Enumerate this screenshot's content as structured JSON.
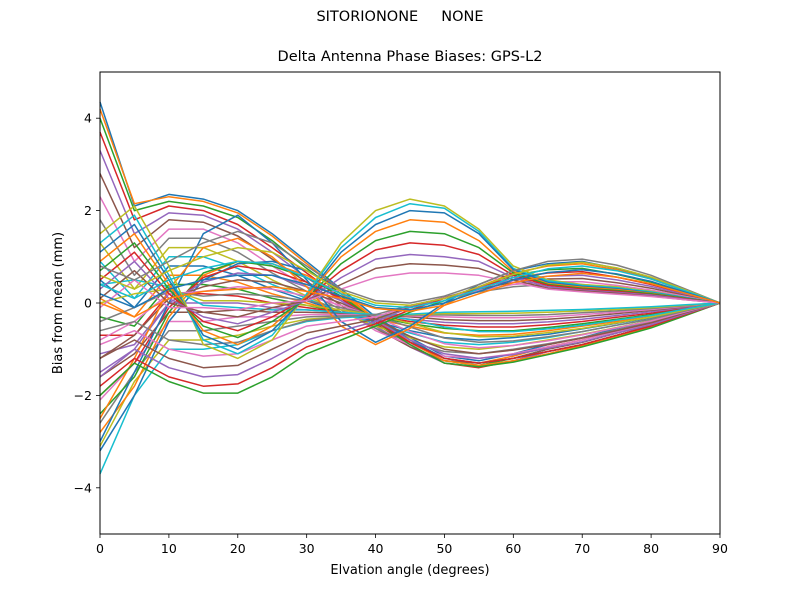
{
  "figure": {
    "suptitle": "SITORIONONE     NONE"
  },
  "chart_data": {
    "type": "line",
    "title": "Delta Antenna Phase Biases: GPS-L2",
    "xlabel": "Elvation angle (degrees)",
    "ylabel": "Bias from mean (mm)",
    "xlim": [
      0,
      90
    ],
    "ylim": [
      -5,
      5
    ],
    "xticks": [
      0,
      10,
      20,
      30,
      40,
      50,
      60,
      70,
      80,
      90
    ],
    "yticks": [
      -4,
      -2,
      0,
      2,
      4
    ],
    "ytick_labels": [
      "−4",
      "−2",
      "0",
      "2",
      "4"
    ],
    "grid": false,
    "legend": "none",
    "x": [
      0,
      5,
      10,
      15,
      20,
      25,
      30,
      35,
      40,
      45,
      50,
      55,
      60,
      65,
      70,
      75,
      80,
      85,
      90
    ],
    "colors": [
      "#1f77b4",
      "#ff7f0e",
      "#2ca02c",
      "#d62728",
      "#9467bd",
      "#8c564b",
      "#e377c2",
      "#7f7f7f",
      "#bcbd22",
      "#17becf"
    ],
    "series": [
      {
        "values": [
          4.35,
          2.1,
          2.35,
          2.25,
          2.0,
          1.5,
          0.9,
          0.3,
          -0.3,
          -0.75,
          -1.15,
          -1.25,
          -1.1,
          -0.9,
          -0.75,
          -0.55,
          -0.4,
          -0.2,
          0
        ]
      },
      {
        "values": [
          4.2,
          2.15,
          2.3,
          2.2,
          1.95,
          1.45,
          0.85,
          0.25,
          -0.35,
          -0.8,
          -1.2,
          -1.3,
          -1.15,
          -0.95,
          -0.8,
          -0.6,
          -0.42,
          -0.2,
          0
        ]
      },
      {
        "values": [
          4.0,
          2.0,
          2.2,
          2.1,
          1.85,
          1.35,
          0.75,
          0.2,
          -0.4,
          -0.85,
          -1.25,
          -1.35,
          -1.2,
          -1.0,
          -0.85,
          -0.65,
          -0.45,
          -0.22,
          0
        ]
      },
      {
        "values": [
          3.7,
          1.8,
          2.1,
          2.0,
          1.7,
          1.2,
          0.65,
          0.1,
          -0.45,
          -0.9,
          -1.3,
          -1.4,
          -1.25,
          -1.05,
          -0.9,
          -0.7,
          -0.5,
          -0.25,
          0
        ]
      },
      {
        "values": [
          3.3,
          1.5,
          1.95,
          1.9,
          1.6,
          1.1,
          0.55,
          0.05,
          -0.5,
          -0.95,
          -1.3,
          -1.38,
          -1.25,
          -1.05,
          -0.9,
          -0.7,
          -0.5,
          -0.25,
          0
        ]
      },
      {
        "values": [
          2.8,
          1.2,
          1.8,
          1.75,
          1.45,
          0.95,
          0.45,
          -0.05,
          -0.55,
          -0.95,
          -1.25,
          -1.3,
          -1.2,
          -1.0,
          -0.85,
          -0.65,
          -0.48,
          -0.24,
          0
        ]
      },
      {
        "values": [
          2.3,
          0.9,
          1.6,
          1.6,
          1.3,
          0.8,
          0.35,
          -0.1,
          -0.6,
          -0.9,
          -1.15,
          -1.2,
          -1.1,
          -0.95,
          -0.8,
          -0.62,
          -0.45,
          -0.22,
          0
        ]
      },
      {
        "values": [
          1.8,
          0.6,
          1.4,
          1.4,
          1.1,
          0.65,
          0.25,
          -0.15,
          -0.55,
          -0.85,
          -1.05,
          -1.1,
          -1.0,
          -0.88,
          -0.75,
          -0.58,
          -0.42,
          -0.2,
          0
        ]
      },
      {
        "values": [
          1.3,
          0.3,
          1.2,
          1.2,
          0.9,
          0.5,
          0.15,
          -0.2,
          -0.5,
          -0.75,
          -0.95,
          -1.0,
          -0.92,
          -0.8,
          -0.68,
          -0.53,
          -0.38,
          -0.18,
          0
        ]
      },
      {
        "values": [
          0.9,
          0.1,
          1.0,
          1.0,
          0.75,
          0.4,
          0.1,
          -0.2,
          -0.45,
          -0.65,
          -0.85,
          -0.9,
          -0.85,
          -0.75,
          -0.62,
          -0.48,
          -0.35,
          -0.17,
          0
        ]
      },
      {
        "values": [
          0.5,
          -0.1,
          0.8,
          0.8,
          0.6,
          0.3,
          0.05,
          -0.2,
          -0.4,
          -0.6,
          -0.75,
          -0.8,
          -0.75,
          -0.68,
          -0.56,
          -0.44,
          -0.32,
          -0.16,
          0
        ]
      },
      {
        "values": [
          0.1,
          -0.3,
          0.6,
          0.6,
          0.45,
          0.2,
          0.0,
          -0.2,
          -0.35,
          -0.5,
          -0.65,
          -0.7,
          -0.68,
          -0.6,
          -0.5,
          -0.4,
          -0.28,
          -0.14,
          0
        ]
      },
      {
        "values": [
          -0.3,
          -0.5,
          0.4,
          0.4,
          0.3,
          0.1,
          -0.05,
          -0.2,
          -0.3,
          -0.45,
          -0.55,
          -0.6,
          -0.6,
          -0.53,
          -0.45,
          -0.35,
          -0.25,
          -0.12,
          0
        ]
      },
      {
        "values": [
          -0.7,
          -0.7,
          0.2,
          0.2,
          0.15,
          0.0,
          -0.1,
          -0.2,
          -0.28,
          -0.4,
          -0.48,
          -0.52,
          -0.52,
          -0.47,
          -0.4,
          -0.31,
          -0.22,
          -0.1,
          0
        ]
      },
      {
        "values": [
          -1.1,
          -0.9,
          0.0,
          0.0,
          0.0,
          -0.1,
          -0.15,
          -0.2,
          -0.25,
          -0.35,
          -0.42,
          -0.45,
          -0.45,
          -0.41,
          -0.35,
          -0.27,
          -0.19,
          -0.09,
          0
        ]
      },
      {
        "values": [
          -1.6,
          -1.1,
          -0.2,
          -0.2,
          -0.15,
          -0.2,
          -0.2,
          -0.22,
          -0.25,
          -0.3,
          -0.36,
          -0.38,
          -0.38,
          -0.35,
          -0.3,
          -0.23,
          -0.16,
          -0.08,
          0
        ]
      },
      {
        "values": [
          -2.1,
          -1.3,
          -0.4,
          -0.4,
          -0.3,
          -0.3,
          -0.25,
          -0.25,
          -0.25,
          -0.28,
          -0.3,
          -0.32,
          -0.32,
          -0.3,
          -0.25,
          -0.2,
          -0.14,
          -0.07,
          0
        ]
      },
      {
        "values": [
          -2.6,
          -1.5,
          -0.6,
          -0.6,
          -0.5,
          -0.4,
          -0.3,
          -0.28,
          -0.26,
          -0.26,
          -0.26,
          -0.27,
          -0.27,
          -0.25,
          -0.21,
          -0.17,
          -0.12,
          -0.06,
          0
        ]
      },
      {
        "values": [
          -3.1,
          -1.7,
          -0.8,
          -0.8,
          -0.7,
          -0.5,
          -0.35,
          -0.3,
          -0.27,
          -0.25,
          -0.23,
          -0.23,
          -0.22,
          -0.2,
          -0.17,
          -0.14,
          -0.1,
          -0.05,
          0
        ]
      },
      {
        "values": [
          -3.7,
          -2.0,
          -1.0,
          -1.0,
          -0.9,
          -0.6,
          -0.4,
          -0.32,
          -0.28,
          -0.24,
          -0.2,
          -0.19,
          -0.18,
          -0.16,
          -0.14,
          -0.11,
          -0.08,
          -0.04,
          0
        ]
      },
      {
        "values": [
          -3.2,
          -2.0,
          -0.4,
          0.5,
          0.85,
          0.9,
          0.7,
          0.3,
          -0.3,
          -0.8,
          -1.2,
          -1.3,
          -1.2,
          -1.05,
          -0.9,
          -0.7,
          -0.5,
          -0.25,
          0
        ]
      },
      {
        "values": [
          -2.8,
          -1.8,
          -0.3,
          0.6,
          0.9,
          0.85,
          0.6,
          0.2,
          -0.35,
          -0.85,
          -1.25,
          -1.35,
          -1.25,
          -1.1,
          -0.92,
          -0.72,
          -0.52,
          -0.26,
          0
        ]
      },
      {
        "values": [
          -2.4,
          -1.6,
          -0.2,
          0.65,
          0.9,
          0.8,
          0.55,
          0.15,
          -0.4,
          -0.9,
          -1.3,
          -1.38,
          -1.28,
          -1.12,
          -0.95,
          -0.75,
          -0.54,
          -0.27,
          0
        ]
      },
      {
        "values": [
          -2.0,
          -1.3,
          -0.1,
          0.55,
          0.8,
          0.7,
          0.45,
          0.1,
          -0.4,
          -0.85,
          -1.2,
          -1.3,
          -1.2,
          -1.05,
          -0.9,
          -0.7,
          -0.5,
          -0.25,
          0
        ]
      },
      {
        "values": [
          -1.6,
          -1.0,
          0.0,
          0.45,
          0.65,
          0.6,
          0.35,
          0.05,
          -0.38,
          -0.8,
          -1.1,
          -1.2,
          -1.12,
          -0.98,
          -0.84,
          -0.65,
          -0.47,
          -0.23,
          0
        ]
      },
      {
        "values": [
          -1.2,
          -0.7,
          0.1,
          0.35,
          0.5,
          0.45,
          0.25,
          0.0,
          -0.35,
          -0.72,
          -1.0,
          -1.1,
          -1.02,
          -0.9,
          -0.76,
          -0.6,
          -0.43,
          -0.21,
          0
        ]
      },
      {
        "values": [
          -0.8,
          -0.4,
          0.2,
          0.25,
          0.35,
          0.3,
          0.15,
          -0.05,
          -0.3,
          -0.62,
          -0.88,
          -0.97,
          -0.92,
          -0.82,
          -0.69,
          -0.54,
          -0.39,
          -0.19,
          0
        ]
      },
      {
        "values": [
          -0.4,
          -0.1,
          0.25,
          0.15,
          0.2,
          0.15,
          0.05,
          -0.1,
          -0.28,
          -0.52,
          -0.76,
          -0.85,
          -0.82,
          -0.73,
          -0.62,
          -0.48,
          -0.35,
          -0.17,
          0
        ]
      },
      {
        "values": [
          0.0,
          0.2,
          0.3,
          0.05,
          0.05,
          0.0,
          -0.05,
          -0.15,
          -0.26,
          -0.44,
          -0.64,
          -0.73,
          -0.72,
          -0.64,
          -0.55,
          -0.43,
          -0.31,
          -0.15,
          0
        ]
      },
      {
        "values": [
          0.4,
          0.5,
          0.35,
          -0.05,
          -0.1,
          -0.15,
          -0.15,
          -0.2,
          -0.25,
          -0.36,
          -0.52,
          -0.62,
          -0.62,
          -0.56,
          -0.48,
          -0.37,
          -0.27,
          -0.13,
          0
        ]
      },
      {
        "values": [
          -3.0,
          -1.5,
          0.0,
          1.5,
          1.9,
          1.3,
          0.5,
          -0.4,
          -0.85,
          -0.5,
          0.0,
          0.4,
          0.7,
          0.85,
          0.9,
          0.75,
          0.55,
          0.28,
          0
        ]
      },
      {
        "values": [
          -2.5,
          -1.2,
          0.3,
          1.2,
          1.4,
          1.0,
          0.35,
          -0.5,
          -0.9,
          -0.55,
          -0.05,
          0.35,
          0.65,
          0.8,
          0.85,
          0.72,
          0.52,
          0.26,
          0
        ]
      },
      {
        "values": [
          -2.0,
          -1.3,
          -1.7,
          -1.95,
          -1.95,
          -1.6,
          -1.1,
          -0.8,
          -0.5,
          -0.2,
          0.05,
          0.35,
          0.6,
          0.72,
          0.75,
          0.62,
          0.45,
          0.22,
          0
        ]
      },
      {
        "values": [
          -1.8,
          -1.2,
          -1.6,
          -1.8,
          -1.75,
          -1.4,
          -0.95,
          -0.7,
          -0.45,
          -0.15,
          0.1,
          0.35,
          0.55,
          0.65,
          0.68,
          0.56,
          0.4,
          0.2,
          0
        ]
      },
      {
        "values": [
          -1.5,
          -1.0,
          -1.4,
          -1.6,
          -1.55,
          -1.2,
          -0.8,
          -0.6,
          -0.4,
          -0.1,
          0.12,
          0.33,
          0.5,
          0.58,
          0.6,
          0.5,
          0.36,
          0.18,
          0
        ]
      },
      {
        "values": [
          -1.2,
          -0.8,
          -1.2,
          -1.4,
          -1.35,
          -1.0,
          -0.65,
          -0.5,
          -0.35,
          -0.08,
          0.12,
          0.3,
          0.45,
          0.52,
          0.53,
          0.44,
          0.32,
          0.16,
          0
        ]
      },
      {
        "values": [
          -0.9,
          -0.6,
          -1.0,
          -1.15,
          -1.1,
          -0.8,
          -0.5,
          -0.4,
          -0.3,
          -0.06,
          0.11,
          0.27,
          0.4,
          0.46,
          0.46,
          0.38,
          0.28,
          0.14,
          0
        ]
      },
      {
        "values": [
          -0.6,
          -0.4,
          -0.8,
          -0.9,
          -0.85,
          -0.6,
          -0.38,
          -0.3,
          -0.25,
          -0.05,
          0.1,
          0.24,
          0.35,
          0.4,
          0.4,
          0.33,
          0.24,
          0.12,
          0
        ]
      },
      {
        "values": [
          1.5,
          2.1,
          0.8,
          -0.9,
          -1.2,
          -0.8,
          0.2,
          1.3,
          2.0,
          2.25,
          2.1,
          1.6,
          0.8,
          0.5,
          0.4,
          0.35,
          0.25,
          0.12,
          0
        ]
      },
      {
        "values": [
          1.3,
          1.9,
          0.6,
          -0.8,
          -1.1,
          -0.7,
          0.2,
          1.2,
          1.85,
          2.15,
          2.05,
          1.55,
          0.75,
          0.48,
          0.38,
          0.33,
          0.24,
          0.12,
          0
        ]
      },
      {
        "values": [
          1.1,
          1.7,
          0.5,
          -0.7,
          -1.0,
          -0.6,
          0.15,
          1.1,
          1.7,
          2.0,
          1.95,
          1.5,
          0.72,
          0.45,
          0.36,
          0.31,
          0.22,
          0.11,
          0
        ]
      },
      {
        "values": [
          0.9,
          1.5,
          0.4,
          -0.6,
          -0.9,
          -0.5,
          0.15,
          1.0,
          1.55,
          1.8,
          1.75,
          1.35,
          0.68,
          0.42,
          0.34,
          0.29,
          0.21,
          0.1,
          0
        ]
      },
      {
        "values": [
          0.7,
          1.3,
          0.3,
          -0.5,
          -0.75,
          -0.4,
          0.1,
          0.85,
          1.35,
          1.55,
          1.5,
          1.2,
          0.65,
          0.4,
          0.32,
          0.27,
          0.2,
          0.1,
          0
        ]
      },
      {
        "values": [
          0.5,
          1.1,
          0.2,
          -0.4,
          -0.6,
          -0.3,
          0.1,
          0.7,
          1.15,
          1.3,
          1.25,
          1.05,
          0.6,
          0.38,
          0.3,
          0.25,
          0.18,
          0.09,
          0
        ]
      },
      {
        "values": [
          0.3,
          0.9,
          0.1,
          -0.3,
          -0.45,
          -0.2,
          0.05,
          0.55,
          0.95,
          1.05,
          1.0,
          0.9,
          0.55,
          0.35,
          0.28,
          0.23,
          0.17,
          0.08,
          0
        ]
      },
      {
        "values": [
          0.1,
          0.7,
          0.0,
          -0.2,
          -0.3,
          -0.1,
          0.05,
          0.4,
          0.75,
          0.85,
          0.82,
          0.75,
          0.5,
          0.32,
          0.26,
          0.21,
          0.15,
          0.07,
          0
        ]
      },
      {
        "values": [
          -0.1,
          0.5,
          -0.1,
          -0.1,
          -0.15,
          0.0,
          0.05,
          0.3,
          0.55,
          0.65,
          0.65,
          0.6,
          0.45,
          0.3,
          0.24,
          0.19,
          0.14,
          0.07,
          0
        ]
      },
      {
        "values": [
          0.8,
          0.5,
          0.9,
          1.3,
          1.55,
          1.3,
          0.8,
          0.3,
          0.05,
          0.0,
          0.15,
          0.4,
          0.7,
          0.9,
          0.95,
          0.82,
          0.6,
          0.3,
          0
        ]
      },
      {
        "values": [
          0.6,
          0.3,
          0.7,
          1.0,
          1.2,
          1.1,
          0.7,
          0.25,
          0.0,
          -0.05,
          0.1,
          0.35,
          0.62,
          0.82,
          0.88,
          0.76,
          0.56,
          0.28,
          0
        ]
      },
      {
        "values": [
          0.4,
          0.1,
          0.5,
          0.75,
          0.9,
          0.85,
          0.55,
          0.2,
          -0.05,
          -0.1,
          0.05,
          0.3,
          0.55,
          0.74,
          0.8,
          0.7,
          0.52,
          0.26,
          0
        ]
      },
      {
        "values": [
          0.2,
          -0.1,
          0.3,
          0.5,
          0.6,
          0.6,
          0.4,
          0.15,
          -0.1,
          -0.15,
          0.0,
          0.25,
          0.5,
          0.66,
          0.72,
          0.63,
          0.47,
          0.23,
          0
        ]
      },
      {
        "values": [
          0.0,
          -0.3,
          0.1,
          0.25,
          0.3,
          0.35,
          0.25,
          0.1,
          -0.12,
          -0.18,
          -0.05,
          0.2,
          0.44,
          0.58,
          0.64,
          0.56,
          0.42,
          0.21,
          0
        ]
      }
    ]
  }
}
